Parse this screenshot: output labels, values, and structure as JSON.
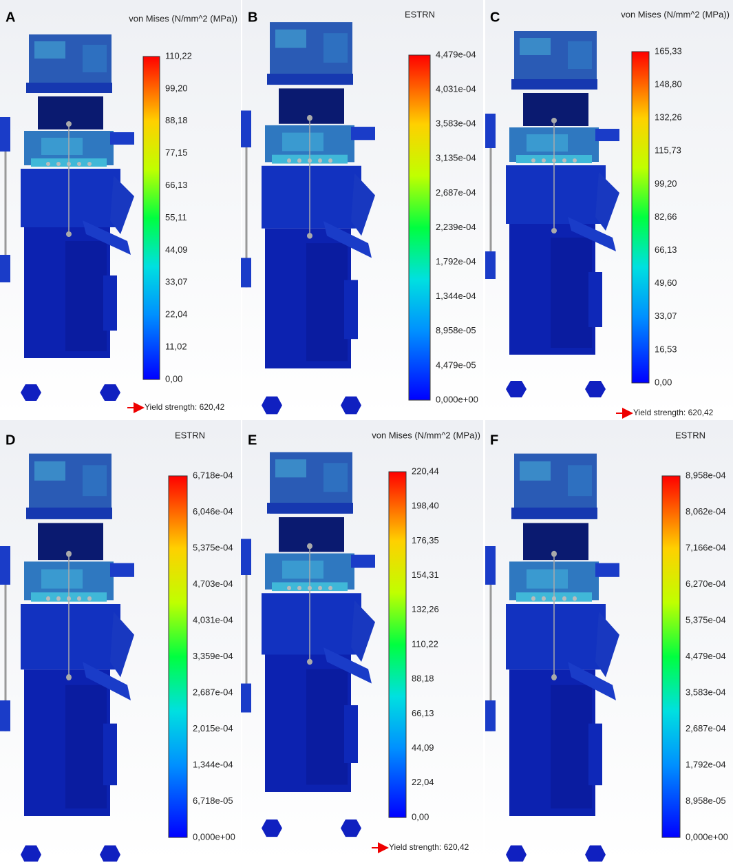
{
  "panels": [
    {
      "letter": "A",
      "legend_title": "von Mises (N/mm^2 (MPa))",
      "scale": [
        "110,22",
        "99,20",
        "88,18",
        "77,15",
        "66,13",
        "55,11",
        "44,09",
        "33,07",
        "22,04",
        "11,02",
        "0,00"
      ],
      "yield_note": "Yield strength: 620,42"
    },
    {
      "letter": "B",
      "legend_title": "ESTRN",
      "scale": [
        "4,479e-04",
        "4,031e-04",
        "3,583e-04",
        "3,135e-04",
        "2,687e-04",
        "2,239e-04",
        "1,792e-04",
        "1,344e-04",
        "8,958e-05",
        "4,479e-05",
        "0,000e+00"
      ]
    },
    {
      "letter": "C",
      "legend_title": "von Mises (N/mm^2 (MPa))",
      "scale": [
        "165,33",
        "148,80",
        "132,26",
        "115,73",
        "99,20",
        "82,66",
        "66,13",
        "49,60",
        "33,07",
        "16,53",
        "0,00"
      ],
      "yield_note": "Yield strength: 620,42"
    },
    {
      "letter": "D",
      "legend_title": "ESTRN",
      "scale": [
        "6,718e-04",
        "6,046e-04",
        "5,375e-04",
        "4,703e-04",
        "4,031e-04",
        "3,359e-04",
        "2,687e-04",
        "2,015e-04",
        "1,344e-04",
        "6,718e-05",
        "0,000e+00"
      ]
    },
    {
      "letter": "E",
      "legend_title": "von Mises (N/mm^2 (MPa))",
      "scale": [
        "220,44",
        "198,40",
        "176,35",
        "154,31",
        "132,26",
        "110,22",
        "88,18",
        "66,13",
        "44,09",
        "22,04",
        "0,00"
      ],
      "yield_note": "Yield strength: 620,42"
    },
    {
      "letter": "F",
      "legend_title": "ESTRN",
      "scale": [
        "8,958e-04",
        "8,062e-04",
        "7,166e-04",
        "6,270e-04",
        "5,375e-04",
        "4,479e-04",
        "3,583e-04",
        "2,687e-04",
        "1,792e-04",
        "8,958e-05",
        "0,000e+00"
      ]
    }
  ]
}
